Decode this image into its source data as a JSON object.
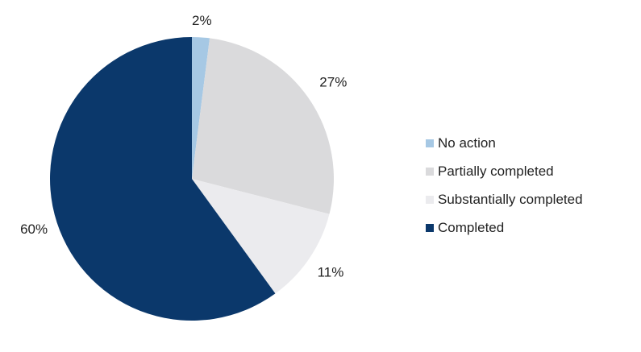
{
  "chart_data": {
    "type": "pie",
    "start_angle_deg": 0,
    "direction": "clockwise",
    "slices": [
      {
        "label": "No action",
        "value": 2,
        "label_text": "2%",
        "color": "#a6c8e4"
      },
      {
        "label": "Partially completed",
        "value": 27,
        "label_text": "27%",
        "color": "#dadadc"
      },
      {
        "label": "Substantially completed",
        "value": 11,
        "label_text": "11%",
        "color": "#ebebee"
      },
      {
        "label": "Completed",
        "value": 60,
        "label_text": "60%",
        "color": "#0b386b"
      }
    ],
    "legend_position": "right"
  }
}
